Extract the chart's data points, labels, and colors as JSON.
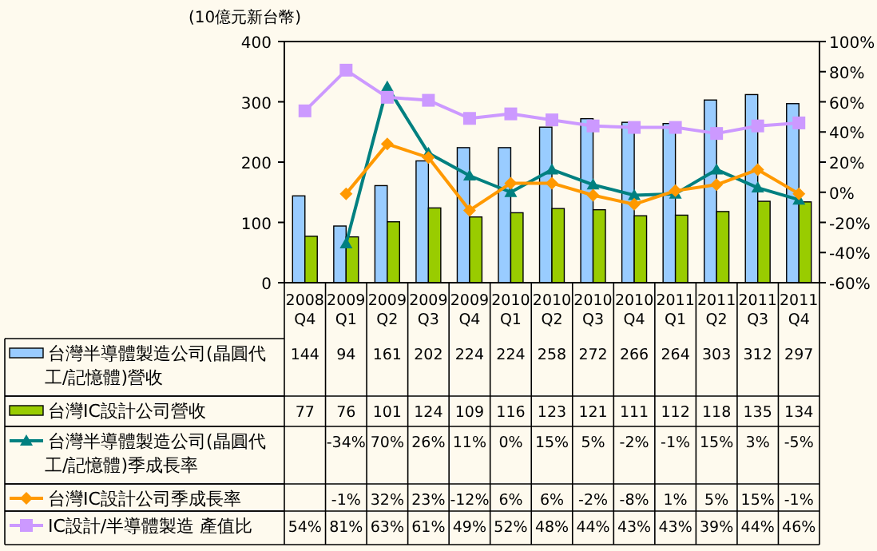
{
  "chart_data": {
    "type": "bar",
    "ylabel": "(10億元新台幣)",
    "categories": [
      "2008 Q4",
      "2009 Q1",
      "2009 Q2",
      "2009 Q3",
      "2009 Q4",
      "2010 Q1",
      "2010 Q2",
      "2010 Q3",
      "2010 Q4",
      "2011 Q1",
      "2011 Q2",
      "2011 Q3",
      "2011 Q4"
    ],
    "ylim": [
      0,
      400
    ],
    "yticks": [
      0,
      100,
      200,
      300,
      400
    ],
    "y2lim": [
      -60,
      100
    ],
    "y2ticks": [
      {
        "value": -60,
        "label": "-60%"
      },
      {
        "value": -40,
        "label": "-40%"
      },
      {
        "value": -20,
        "label": "-20%"
      },
      {
        "value": 0,
        "label": "0%"
      },
      {
        "value": 20,
        "label": "20%"
      },
      {
        "value": 40,
        "label": "40%"
      },
      {
        "value": 60,
        "label": "60%"
      },
      {
        "value": 80,
        "label": "80%"
      },
      {
        "value": 100,
        "label": "100%"
      }
    ],
    "legend": "bottom",
    "grid": false,
    "series": [
      {
        "name": "台灣半導體製造公司(晶圓代工/記憶體)營收",
        "color": "#99ccff",
        "values": [
          144,
          94,
          161,
          202,
          224,
          224,
          258,
          272,
          266,
          264,
          303,
          312,
          297
        ],
        "value_labels": [
          "144",
          "94",
          "161",
          "202",
          "224",
          "224",
          "258",
          "272",
          "266",
          "264",
          "303",
          "312",
          "297"
        ]
      },
      {
        "name": "台灣IC設計公司營收",
        "color": "#99cc00",
        "values": [
          77,
          76,
          101,
          124,
          109,
          116,
          123,
          121,
          111,
          112,
          118,
          135,
          134
        ],
        "value_labels": [
          "77",
          "76",
          "101",
          "124",
          "109",
          "116",
          "123",
          "121",
          "111",
          "112",
          "118",
          "135",
          "134"
        ]
      },
      {
        "name": "台灣半導體製造公司(晶圓代工/記憶體)季成長率",
        "type": "line",
        "axis": "y2",
        "marker": "triangle",
        "color": "#008080",
        "values": [
          null,
          -34,
          70,
          26,
          11,
          0,
          15,
          5,
          -2,
          -1,
          15,
          3,
          -5
        ],
        "value_labels": [
          null,
          "-34%",
          "70%",
          "26%",
          "11%",
          "0%",
          "15%",
          "5%",
          "-2%",
          "-1%",
          "15%",
          "3%",
          "-5%"
        ]
      },
      {
        "name": "台灣IC設計公司季成長率",
        "type": "line",
        "axis": "y2",
        "marker": "diamond",
        "color": "#ff9900",
        "values": [
          null,
          -1,
          32,
          23,
          -12,
          6,
          6,
          -2,
          -8,
          1,
          5,
          15,
          -1
        ],
        "value_labels": [
          null,
          "-1%",
          "32%",
          "23%",
          "-12%",
          "6%",
          "6%",
          "-2%",
          "-8%",
          "1%",
          "5%",
          "15%",
          "-1%"
        ]
      },
      {
        "name": "IC設計/半導體製造 產值比",
        "type": "line",
        "axis": "y2",
        "marker": "square",
        "color": "#cc99ff",
        "values": [
          54,
          81,
          63,
          61,
          49,
          52,
          48,
          44,
          43,
          43,
          39,
          44,
          46
        ],
        "value_labels": [
          "54%",
          "81%",
          "63%",
          "61%",
          "49%",
          "52%",
          "48%",
          "44%",
          "43%",
          "43%",
          "39%",
          "44%",
          "46%"
        ]
      }
    ]
  }
}
